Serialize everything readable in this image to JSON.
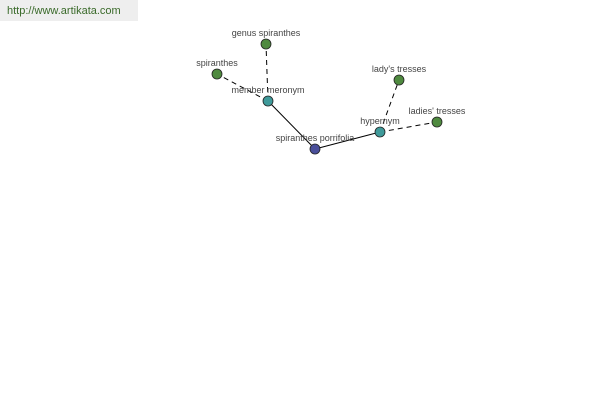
{
  "watermark": "http://www.artikata.com",
  "colors": {
    "center": "#4a4f9a",
    "relation": "#3f9a9a",
    "leaf": "#4f8a3f",
    "edge": "#000000"
  },
  "nodes": [
    {
      "id": "center",
      "label": "spiranthes porrifolia",
      "kind": "center"
    },
    {
      "id": "meronym",
      "label": "member meronym",
      "kind": "relation"
    },
    {
      "id": "hypernym",
      "label": "hypernym",
      "kind": "relation"
    },
    {
      "id": "genus",
      "label": "genus spiranthes",
      "kind": "leaf"
    },
    {
      "id": "spiranthes",
      "label": "spiranthes",
      "kind": "leaf"
    },
    {
      "id": "ladys",
      "label": "lady's tresses",
      "kind": "leaf"
    },
    {
      "id": "ladies",
      "label": "ladies' tresses",
      "kind": "leaf"
    }
  ],
  "edges": [
    {
      "from": "center",
      "to": "meronym",
      "style": "solid"
    },
    {
      "from": "center",
      "to": "hypernym",
      "style": "solid"
    },
    {
      "from": "meronym",
      "to": "genus",
      "style": "dashed"
    },
    {
      "from": "meronym",
      "to": "spiranthes",
      "style": "dashed"
    },
    {
      "from": "hypernym",
      "to": "ladys",
      "style": "dashed"
    },
    {
      "from": "hypernym",
      "to": "ladies",
      "style": "dashed"
    }
  ]
}
